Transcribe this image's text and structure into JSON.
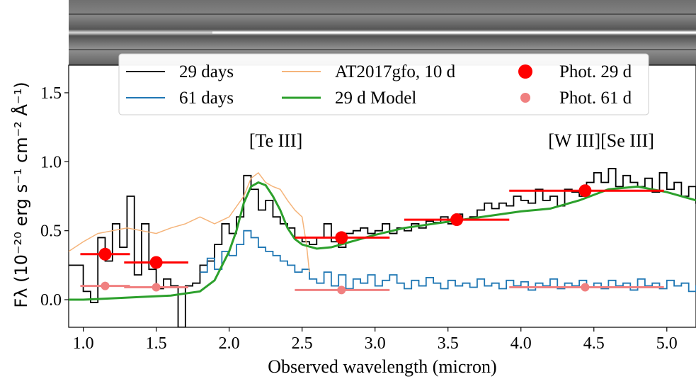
{
  "chart_data": {
    "type": "line",
    "xlabel": "Observed wavelength (micron)",
    "ylabel": "Fλ (10⁻²⁰ erg s⁻¹ cm⁻² Å⁻¹)",
    "xlim": [
      0.9,
      5.2
    ],
    "ylim": [
      -0.2,
      1.7
    ],
    "xticks": [
      "1.0",
      "1.5",
      "2.0",
      "2.5",
      "3.0",
      "3.5",
      "4.0",
      "4.5",
      "5.0"
    ],
    "yticks": [
      "0.0",
      "0.5",
      "1.0",
      "1.5"
    ],
    "grid": false,
    "legend": {
      "placement": "top-center",
      "entries": [
        {
          "name": "29 days",
          "color": "#000000",
          "kind": "line"
        },
        {
          "name": "61 days",
          "color": "#1f77b4",
          "kind": "line"
        },
        {
          "name": "AT2017gfo, 10 d",
          "color": "#f5b47a",
          "kind": "line"
        },
        {
          "name": "29 d Model",
          "color": "#2ca02c",
          "kind": "line"
        },
        {
          "name": "Phot. 29 d",
          "color": "#ff0000",
          "kind": "marker"
        },
        {
          "name": "Phot. 61 d",
          "color": "#f08080",
          "kind": "marker"
        }
      ]
    },
    "annotations": [
      {
        "text": "[Te III]",
        "x": 2.32,
        "y": 1.11
      },
      {
        "text": "[W III][Se III]",
        "x": 4.55,
        "y": 1.11
      }
    ],
    "series": [
      {
        "name": "29 days",
        "color": "#000000",
        "style": "step",
        "points": [
          [
            0.9,
            0.25
          ],
          [
            1.0,
            0.06
          ],
          [
            1.05,
            -0.02
          ],
          [
            1.1,
            0.45
          ],
          [
            1.15,
            0.28
          ],
          [
            1.2,
            0.55
          ],
          [
            1.25,
            0.38
          ],
          [
            1.3,
            0.75
          ],
          [
            1.35,
            0.18
          ],
          [
            1.4,
            0.55
          ],
          [
            1.45,
            0.22
          ],
          [
            1.5,
            0.08
          ],
          [
            1.55,
            0.15
          ],
          [
            1.6,
            0.1
          ],
          [
            1.65,
            -0.2
          ],
          [
            1.7,
            0.1
          ],
          [
            1.75,
            0.12
          ],
          [
            1.8,
            0.25
          ],
          [
            1.85,
            0.28
          ],
          [
            1.9,
            0.4
          ],
          [
            1.95,
            0.55
          ],
          [
            2.0,
            0.48
          ],
          [
            2.05,
            0.6
          ],
          [
            2.1,
            0.9
          ],
          [
            2.15,
            0.8
          ],
          [
            2.2,
            0.65
          ],
          [
            2.25,
            0.72
          ],
          [
            2.3,
            0.6
          ],
          [
            2.35,
            0.55
          ],
          [
            2.4,
            0.52
          ],
          [
            2.45,
            0.45
          ],
          [
            2.5,
            0.42
          ],
          [
            2.55,
            0.4
          ],
          [
            2.6,
            0.45
          ],
          [
            2.65,
            0.55
          ],
          [
            2.7,
            0.42
          ],
          [
            2.75,
            0.38
          ],
          [
            2.8,
            0.48
          ],
          [
            2.85,
            0.5
          ],
          [
            2.9,
            0.52
          ],
          [
            2.95,
            0.48
          ],
          [
            3.0,
            0.5
          ],
          [
            3.05,
            0.55
          ],
          [
            3.1,
            0.48
          ],
          [
            3.15,
            0.52
          ],
          [
            3.2,
            0.5
          ],
          [
            3.25,
            0.55
          ],
          [
            3.3,
            0.52
          ],
          [
            3.35,
            0.57
          ],
          [
            3.4,
            0.56
          ],
          [
            3.45,
            0.6
          ],
          [
            3.5,
            0.55
          ],
          [
            3.55,
            0.62
          ],
          [
            3.6,
            0.58
          ],
          [
            3.65,
            0.6
          ],
          [
            3.7,
            0.65
          ],
          [
            3.75,
            0.7
          ],
          [
            3.8,
            0.66
          ],
          [
            3.85,
            0.7
          ],
          [
            3.9,
            0.68
          ],
          [
            3.95,
            0.75
          ],
          [
            4.0,
            0.72
          ],
          [
            4.05,
            0.7
          ],
          [
            4.1,
            0.8
          ],
          [
            4.15,
            0.72
          ],
          [
            4.2,
            0.75
          ],
          [
            4.25,
            0.68
          ],
          [
            4.3,
            0.8
          ],
          [
            4.35,
            0.78
          ],
          [
            4.4,
            0.75
          ],
          [
            4.45,
            0.85
          ],
          [
            4.5,
            0.92
          ],
          [
            4.55,
            0.85
          ],
          [
            4.6,
            0.95
          ],
          [
            4.65,
            0.82
          ],
          [
            4.7,
            0.9
          ],
          [
            4.75,
            0.85
          ],
          [
            4.8,
            0.82
          ],
          [
            4.85,
            0.88
          ],
          [
            4.9,
            0.78
          ],
          [
            4.95,
            0.92
          ],
          [
            5.0,
            0.8
          ],
          [
            5.05,
            0.85
          ],
          [
            5.1,
            0.75
          ],
          [
            5.15,
            0.82
          ],
          [
            5.2,
            0.7
          ]
        ]
      },
      {
        "name": "61 days",
        "color": "#1f77b4",
        "style": "step",
        "points": [
          [
            1.8,
            0.2
          ],
          [
            1.85,
            0.3
          ],
          [
            1.9,
            0.22
          ],
          [
            1.95,
            0.35
          ],
          [
            2.0,
            0.32
          ],
          [
            2.05,
            0.4
          ],
          [
            2.1,
            0.5
          ],
          [
            2.15,
            0.45
          ],
          [
            2.2,
            0.38
          ],
          [
            2.25,
            0.35
          ],
          [
            2.3,
            0.32
          ],
          [
            2.35,
            0.28
          ],
          [
            2.4,
            0.25
          ],
          [
            2.45,
            0.2
          ],
          [
            2.5,
            0.22
          ],
          [
            2.55,
            0.15
          ],
          [
            2.6,
            0.12
          ],
          [
            2.65,
            0.2
          ],
          [
            2.7,
            0.1
          ],
          [
            2.75,
            0.18
          ],
          [
            2.8,
            0.08
          ],
          [
            2.85,
            0.15
          ],
          [
            2.9,
            0.12
          ],
          [
            2.95,
            0.18
          ],
          [
            3.0,
            0.1
          ],
          [
            3.05,
            0.14
          ],
          [
            3.1,
            0.18
          ],
          [
            3.15,
            0.12
          ],
          [
            3.2,
            0.08
          ],
          [
            3.25,
            0.14
          ],
          [
            3.3,
            0.1
          ],
          [
            3.35,
            0.16
          ],
          [
            3.4,
            0.12
          ],
          [
            3.45,
            0.08
          ],
          [
            3.5,
            0.14
          ],
          [
            3.55,
            0.1
          ],
          [
            3.6,
            0.12
          ],
          [
            3.65,
            0.09
          ],
          [
            3.7,
            0.15
          ],
          [
            3.75,
            0.1
          ],
          [
            3.8,
            0.12
          ],
          [
            3.85,
            0.08
          ],
          [
            3.9,
            0.14
          ],
          [
            3.95,
            0.1
          ],
          [
            4.0,
            0.13
          ],
          [
            4.05,
            0.07
          ],
          [
            4.1,
            0.12
          ],
          [
            4.15,
            0.1
          ],
          [
            4.2,
            0.15
          ],
          [
            4.25,
            0.08
          ],
          [
            4.3,
            0.12
          ],
          [
            4.35,
            0.1
          ],
          [
            4.4,
            0.14
          ],
          [
            4.45,
            0.09
          ],
          [
            4.5,
            0.12
          ],
          [
            4.55,
            0.08
          ],
          [
            4.6,
            0.14
          ],
          [
            4.65,
            0.1
          ],
          [
            4.7,
            0.12
          ],
          [
            4.75,
            0.07
          ],
          [
            4.8,
            0.15
          ],
          [
            4.85,
            0.1
          ],
          [
            4.9,
            0.12
          ],
          [
            4.95,
            0.08
          ],
          [
            5.0,
            0.14
          ],
          [
            5.05,
            0.1
          ],
          [
            5.1,
            0.12
          ],
          [
            5.15,
            0.06
          ],
          [
            5.2,
            0.1
          ]
        ]
      },
      {
        "name": "AT2017gfo, 10 d",
        "color": "#f5b47a",
        "style": "line",
        "points": [
          [
            0.9,
            0.35
          ],
          [
            1.0,
            0.42
          ],
          [
            1.1,
            0.48
          ],
          [
            1.2,
            0.5
          ],
          [
            1.3,
            0.52
          ],
          [
            1.4,
            0.5
          ],
          [
            1.5,
            0.48
          ],
          [
            1.6,
            0.52
          ],
          [
            1.7,
            0.55
          ],
          [
            1.8,
            0.6
          ],
          [
            1.9,
            0.55
          ],
          [
            2.0,
            0.6
          ],
          [
            2.1,
            0.75
          ],
          [
            2.15,
            0.88
          ],
          [
            2.2,
            0.92
          ],
          [
            2.25,
            0.85
          ],
          [
            2.3,
            0.82
          ],
          [
            2.35,
            0.8
          ],
          [
            2.4,
            0.72
          ],
          [
            2.45,
            0.65
          ],
          [
            2.5,
            0.6
          ],
          [
            2.53,
            0.4
          ],
          [
            2.55,
            0.2
          ]
        ]
      },
      {
        "name": "29 d Model",
        "color": "#2ca02c",
        "style": "line",
        "points": [
          [
            0.9,
            0.0
          ],
          [
            1.0,
            0.0
          ],
          [
            1.2,
            0.01
          ],
          [
            1.4,
            0.02
          ],
          [
            1.6,
            0.03
          ],
          [
            1.8,
            0.06
          ],
          [
            1.9,
            0.14
          ],
          [
            2.0,
            0.35
          ],
          [
            2.05,
            0.5
          ],
          [
            2.1,
            0.7
          ],
          [
            2.15,
            0.82
          ],
          [
            2.2,
            0.85
          ],
          [
            2.25,
            0.83
          ],
          [
            2.3,
            0.75
          ],
          [
            2.35,
            0.65
          ],
          [
            2.4,
            0.52
          ],
          [
            2.45,
            0.44
          ],
          [
            2.5,
            0.4
          ],
          [
            2.6,
            0.37
          ],
          [
            2.7,
            0.38
          ],
          [
            2.8,
            0.41
          ],
          [
            3.0,
            0.47
          ],
          [
            3.2,
            0.52
          ],
          [
            3.4,
            0.55
          ],
          [
            3.6,
            0.58
          ],
          [
            3.8,
            0.61
          ],
          [
            4.0,
            0.64
          ],
          [
            4.2,
            0.66
          ],
          [
            4.4,
            0.72
          ],
          [
            4.6,
            0.8
          ],
          [
            4.8,
            0.82
          ],
          [
            5.0,
            0.78
          ],
          [
            5.2,
            0.72
          ]
        ]
      }
    ],
    "photometry": [
      {
        "name": "Phot. 29 d",
        "color": "#ff0000",
        "points": [
          {
            "x": 1.15,
            "y": 0.33,
            "xerr": [
              0.98,
              1.32
            ]
          },
          {
            "x": 1.5,
            "y": 0.27,
            "xerr": [
              1.28,
              1.72
            ]
          },
          {
            "x": 2.77,
            "y": 0.45,
            "xerr": [
              2.45,
              3.1
            ]
          },
          {
            "x": 3.56,
            "y": 0.58,
            "xerr": [
              3.2,
              3.92
            ]
          },
          {
            "x": 4.44,
            "y": 0.79,
            "xerr": [
              3.92,
              4.98
            ]
          }
        ]
      },
      {
        "name": "Phot. 61 d",
        "color": "#f08080",
        "points": [
          {
            "x": 1.15,
            "y": 0.1,
            "xerr": [
              0.98,
              1.32
            ]
          },
          {
            "x": 1.5,
            "y": 0.09,
            "xerr": [
              1.28,
              1.72
            ]
          },
          {
            "x": 2.77,
            "y": 0.07,
            "xerr": [
              2.45,
              3.1
            ]
          },
          {
            "x": 4.44,
            "y": 0.09,
            "xerr": [
              3.92,
              4.98
            ]
          }
        ]
      }
    ]
  }
}
